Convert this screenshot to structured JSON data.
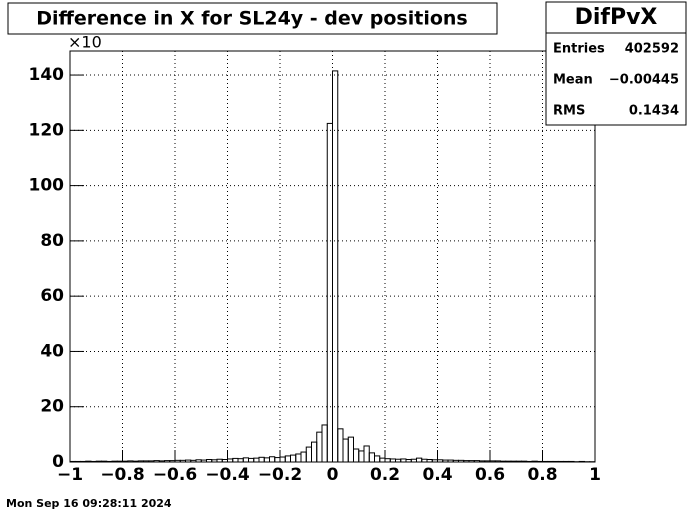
{
  "chart_data": {
    "type": "histogram",
    "title": "Difference in X for SL24y - dev positions",
    "y_multiplier": "×10",
    "footer": "Mon Sep 16 09:28:11 2024",
    "stats": {
      "title": "DifPvX",
      "rows": [
        [
          "Entries",
          "402592"
        ],
        [
          "Mean",
          "−0.00445"
        ],
        [
          "RMS",
          "0.1434"
        ]
      ]
    },
    "color": "#000000",
    "grid": true,
    "bins": [
      -1,
      -0.98,
      -0.96,
      -0.94,
      -0.92,
      -0.9,
      -0.88,
      -0.86,
      -0.84,
      -0.82,
      -0.8,
      -0.78,
      -0.76,
      -0.74,
      -0.72,
      -0.7,
      -0.68,
      -0.66,
      -0.64,
      -0.62,
      -0.6,
      -0.58,
      -0.56,
      -0.54,
      -0.52,
      -0.5,
      -0.48,
      -0.46,
      -0.44,
      -0.42,
      -0.4,
      -0.38,
      -0.36,
      -0.34,
      -0.32,
      -0.3,
      -0.28,
      -0.26,
      -0.24,
      -0.22,
      -0.2,
      -0.18,
      -0.16,
      -0.14,
      -0.12,
      -0.1,
      -0.08,
      -0.06,
      -0.04,
      -0.02,
      0,
      0.02,
      0.04,
      0.06,
      0.08,
      0.1,
      0.12,
      0.14,
      0.16,
      0.18,
      0.2,
      0.22,
      0.24,
      0.26,
      0.28,
      0.3,
      0.32,
      0.34,
      0.36,
      0.38,
      0.4,
      0.42,
      0.44,
      0.46,
      0.48,
      0.5,
      0.52,
      0.54,
      0.56,
      0.58,
      0.6,
      0.62,
      0.64,
      0.66,
      0.68,
      0.7,
      0.72,
      0.74,
      0.76,
      0.78,
      0.8,
      0.82,
      0.84,
      0.86,
      0.88,
      0.9,
      0.92,
      0.94,
      0.96,
      0.98,
      1
    ],
    "values": [
      0.2,
      0.2,
      0.2,
      0.3,
      0.2,
      0.3,
      0.3,
      0.2,
      0.3,
      0.3,
      0.3,
      0.4,
      0.3,
      0.4,
      0.4,
      0.4,
      0.5,
      0.4,
      0.5,
      0.5,
      0.6,
      0.6,
      0.7,
      0.6,
      0.8,
      0.7,
      0.9,
      0.8,
      1.0,
      0.9,
      1.1,
      1.3,
      1.2,
      1.5,
      1.3,
      1.4,
      1.7,
      1.5,
      1.9,
      1.6,
      1.8,
      2.2,
      2.5,
      2.9,
      3.6,
      5.4,
      7.2,
      10.8,
      13.4,
      122.5,
      141.5,
      12,
      8.3,
      9,
      4.7,
      4,
      5.8,
      3.3,
      2.2,
      1.4,
      1.2,
      1.1,
      1.0,
      1.1,
      0.9,
      1.0,
      1.4,
      1.0,
      0.9,
      0.8,
      0.8,
      0.7,
      0.7,
      0.6,
      0.6,
      0.5,
      0.5,
      0.5,
      0.4,
      0.4,
      0.4,
      0.4,
      0.3,
      0.3,
      0.3,
      0.3,
      0.3,
      0.2,
      0.3,
      0.2,
      0.2,
      0.2,
      0.2,
      0.2,
      0.2,
      0.2,
      0.1,
      0.2,
      0.1,
      0.1
    ],
    "xlim": [
      -1,
      1
    ],
    "ylim": [
      0,
      148.7
    ],
    "xticks": [
      {
        "value": -1,
        "label": "−1"
      },
      {
        "value": -0.8,
        "label": "−0.8"
      },
      {
        "value": -0.6,
        "label": "−0.6"
      },
      {
        "value": -0.4,
        "label": "−0.4"
      },
      {
        "value": -0.2,
        "label": "−0.2"
      },
      0,
      0.2,
      0.4,
      0.6,
      0.8,
      1
    ],
    "yticks": [
      0,
      20,
      40,
      60,
      80,
      100,
      120,
      140
    ]
  }
}
